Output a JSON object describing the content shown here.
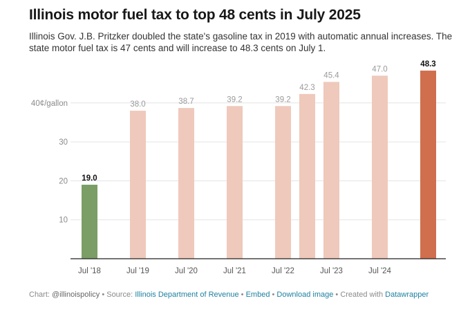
{
  "header": {
    "title": "Illinois motor fuel tax to top 48 cents in July 2025",
    "subtitle": "Illinois Gov. J.B. Pritzker doubled the state's gasoline tax in 2019 with automatic annual increases. The state motor fuel tax is 47 cents and will increase to 48.3 cents on July 1."
  },
  "chart_data": {
    "type": "bar",
    "title": "Illinois motor fuel tax to top 48 cents in July 2025",
    "ylabel": "",
    "xlabel": "",
    "ylim": [
      0,
      50
    ],
    "y_ticks": [
      {
        "value": 40,
        "label": "40¢/gallon"
      },
      {
        "value": 30,
        "label": "30"
      },
      {
        "value": 20,
        "label": "20"
      },
      {
        "value": 10,
        "label": "10"
      }
    ],
    "x_tick_labels": [
      "Jul '18",
      "Jul '19",
      "Jul '20",
      "Jul '21",
      "Jul '22",
      "Jul '23",
      "Jul '24"
    ],
    "grid": true,
    "bars": [
      {
        "date": "2018-07",
        "value": 19.0,
        "label": "19.0",
        "color": "#7a9e65",
        "emphasis": true
      },
      {
        "date": "2019-07",
        "value": 38.0,
        "label": "38.0",
        "color": "#efc9bb",
        "emphasis": false
      },
      {
        "date": "2020-07",
        "value": 38.7,
        "label": "38.7",
        "color": "#efc9bb",
        "emphasis": false
      },
      {
        "date": "2021-07",
        "value": 39.2,
        "label": "39.2",
        "color": "#efc9bb",
        "emphasis": false
      },
      {
        "date": "2022-07",
        "value": 39.2,
        "label": "39.2",
        "color": "#efc9bb",
        "emphasis": false
      },
      {
        "date": "2023-01",
        "value": 42.3,
        "label": "42.3",
        "color": "#efc9bb",
        "emphasis": false
      },
      {
        "date": "2023-07",
        "value": 45.4,
        "label": "45.4",
        "color": "#efc9bb",
        "emphasis": false
      },
      {
        "date": "2024-07",
        "value": 47.0,
        "label": "47.0",
        "color": "#efc9bb",
        "emphasis": false
      },
      {
        "date": "2025-07",
        "value": 48.3,
        "label": "48.3",
        "color": "#d06f4e",
        "emphasis": true
      }
    ]
  },
  "footer": {
    "chart_prefix": "Chart: ",
    "chart_by": "@illinoispolicy",
    "source_prefix": " • Source: ",
    "source": "Illinois Department of Revenue",
    "embed_sep": " • ",
    "embed": "Embed",
    "download_sep": " • ",
    "download": "Download image",
    "created_prefix": " • Created with ",
    "created_with": "Datawrapper"
  }
}
